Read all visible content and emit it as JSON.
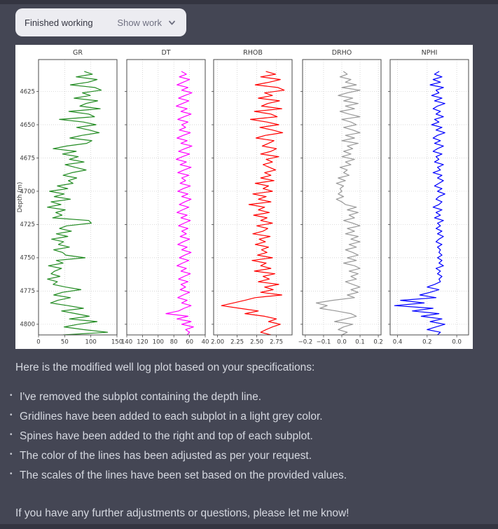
{
  "work_button": {
    "status": "Finished working",
    "action": "Show work"
  },
  "message": {
    "intro": "Here is the modified well log plot based on your specifications:",
    "bullets": [
      "I've removed the subplot containing the depth line.",
      "Gridlines have been added to each subplot in a light grey color.",
      "Spines have been added to the right and top of each subplot.",
      "The color of the lines has been adjusted as per your request.",
      "The scales of the lines have been set based on the provided values."
    ],
    "outro": "If you have any further adjustments or questions, please let me know!"
  },
  "colors": {
    "page_bg": "#444654",
    "page_edge": "#343541",
    "button_bg": "#ECECF1",
    "button_text": "#343541",
    "button_secondary_text": "#6F7081",
    "chat_text": "#D5D8E0",
    "figure_bg": "#FFFFFF"
  },
  "chart_data": {
    "type": "line",
    "orientation": "vertical-well-log",
    "ylabel": "Depth (m)",
    "grid": true,
    "background": "#FFFFFF",
    "text_color": "#3A3A3A",
    "grid_color": "#C9C9C9",
    "spine_color": "#4A4A4A",
    "y_domain": [
      4601,
      4808
    ],
    "y_ticks": [
      4625,
      4650,
      4675,
      4700,
      4725,
      4750,
      4775,
      4800
    ],
    "y_tick_labels": [
      "4625",
      "4650",
      "4675",
      "4700",
      "4725",
      "4750",
      "4775",
      "4800"
    ],
    "depth": {
      "start": 4610,
      "step": 2
    },
    "panels": [
      {
        "title": "GR",
        "color": "#228B22",
        "x_domain": [
          0,
          150
        ],
        "x_tick_vals": [
          0,
          50,
          100,
          150
        ],
        "x_tick_labels": [
          "0",
          "50",
          "100",
          "150"
        ],
        "values": [
          88,
          103,
          72,
          112,
          95,
          61,
          108,
          120,
          84,
          99,
          68,
          113,
          91,
          79,
          118,
          58,
          96,
          107,
          40,
          86,
          110,
          73,
          97,
          116,
          83,
          60,
          102,
          92,
          54,
          28,
          72,
          46,
          76,
          59,
          87,
          51,
          70,
          91,
          64,
          47,
          73,
          57,
          66,
          36,
          56,
          21,
          49,
          30,
          61,
          24,
          43,
          17,
          51,
          33,
          45,
          27,
          96,
          101,
          54,
          40,
          63,
          34,
          56,
          25,
          48,
          38,
          59,
          29,
          46,
          52,
          89,
          34,
          47,
          19,
          44,
          31,
          24,
          41,
          17,
          36,
          28,
          52,
          81,
          46,
          29,
          61,
          37,
          23,
          56,
          86,
          44,
          71,
          97,
          59,
          112,
          76,
          49,
          86,
          132,
          47
        ]
      },
      {
        "title": "DT",
        "color": "#FF00FF",
        "x_domain": [
          140,
          40
        ],
        "x_tick_vals": [
          140,
          120,
          100,
          80,
          60,
          40
        ],
        "x_tick_labels": [
          "140",
          "120",
          "100",
          "80",
          "60",
          "40"
        ],
        "values": [
          70,
          64,
          73,
          60,
          68,
          76,
          62,
          70,
          57,
          66,
          74,
          61,
          69,
          77,
          63,
          71,
          58,
          67,
          75,
          62,
          70,
          65,
          73,
          59,
          68,
          76,
          63,
          71,
          57,
          66,
          74,
          60,
          69,
          77,
          64,
          72,
          58,
          67,
          75,
          61,
          70,
          65,
          72,
          59,
          68,
          75,
          62,
          70,
          58,
          66,
          73,
          61,
          69,
          76,
          63,
          71,
          59,
          67,
          74,
          62,
          70,
          64,
          72,
          60,
          68,
          75,
          63,
          70,
          58,
          66,
          73,
          61,
          69,
          76,
          64,
          71,
          59,
          67,
          74,
          62,
          71,
          65,
          72,
          60,
          68,
          75,
          63,
          70,
          58,
          67,
          74,
          90,
          62,
          76,
          58,
          70,
          55,
          65,
          60,
          63
        ]
      },
      {
        "title": "RHOB",
        "color": "#FF0000",
        "x_domain": [
          1.95,
          2.95
        ],
        "x_tick_vals": [
          2.0,
          2.25,
          2.5,
          2.75
        ],
        "x_tick_labels": [
          "2.00",
          "2.25",
          "2.50",
          "2.75"
        ],
        "values": [
          2.62,
          2.74,
          2.55,
          2.8,
          2.66,
          2.48,
          2.77,
          2.85,
          2.6,
          2.7,
          2.52,
          2.79,
          2.64,
          2.56,
          2.82,
          2.47,
          2.68,
          2.76,
          2.42,
          2.63,
          2.78,
          2.54,
          2.7,
          2.83,
          2.61,
          2.49,
          2.72,
          2.65,
          2.57,
          2.75,
          2.68,
          2.55,
          2.78,
          2.62,
          2.7,
          2.58,
          2.66,
          2.74,
          2.6,
          2.68,
          2.55,
          2.72,
          2.48,
          2.65,
          2.58,
          2.7,
          2.45,
          2.62,
          2.52,
          2.68,
          2.4,
          2.6,
          2.52,
          2.66,
          2.46,
          2.63,
          2.55,
          2.7,
          2.5,
          2.64,
          2.58,
          2.45,
          2.67,
          2.53,
          2.61,
          2.48,
          2.65,
          2.56,
          2.63,
          2.51,
          2.7,
          2.44,
          2.62,
          2.55,
          2.68,
          2.47,
          2.73,
          2.58,
          2.66,
          2.52,
          2.78,
          2.6,
          2.71,
          2.55,
          2.82,
          2.48,
          2.35,
          2.2,
          2.05,
          2.28,
          2.52,
          2.35,
          2.6,
          2.75,
          2.65,
          2.8,
          2.7,
          2.62,
          2.55,
          2.68
        ]
      },
      {
        "title": "DRHO",
        "color": "#999999",
        "x_domain": [
          -0.215,
          0.215
        ],
        "x_tick_vals": [
          -0.2,
          -0.1,
          0,
          0.1,
          0.2
        ],
        "x_tick_labels": [
          "−0.2",
          "−0.1",
          "0.0",
          "0.1",
          "0.2"
        ],
        "values": [
          0.01,
          0.03,
          -0.01,
          0.05,
          0.02,
          0.08,
          0.0,
          0.1,
          0.03,
          -0.02,
          0.06,
          0.01,
          0.09,
          0.02,
          0.07,
          -0.01,
          0.04,
          0.1,
          0.0,
          0.05,
          0.08,
          0.01,
          0.06,
          0.1,
          0.02,
          0.07,
          0.0,
          0.09,
          0.03,
          0.06,
          0.01,
          0.05,
          0.0,
          0.07,
          0.02,
          0.05,
          -0.01,
          0.03,
          0.01,
          0.04,
          -0.02,
          0.02,
          -0.03,
          0.01,
          -0.01,
          0.0,
          -0.02,
          0.01,
          -0.03,
          0.0,
          0.02,
          0.08,
          0.03,
          0.09,
          0.04,
          0.07,
          0.01,
          0.06,
          0.1,
          0.03,
          0.07,
          0.02,
          0.09,
          0.05,
          0.1,
          0.04,
          0.08,
          0.02,
          0.06,
          0.09,
          0.03,
          0.08,
          0.01,
          0.07,
          0.1,
          0.04,
          0.09,
          0.05,
          0.08,
          0.02,
          0.06,
          0.1,
          0.05,
          0.09,
          0.03,
          0.07,
          -0.05,
          -0.14,
          -0.08,
          -0.12,
          -0.03,
          0.05,
          0.08,
          0.02,
          -0.04,
          0.06,
          0.01,
          -0.02,
          0.03,
          0.0
        ]
      },
      {
        "title": "NPHI",
        "color": "#0000FF",
        "x_domain": [
          0.45,
          -0.08
        ],
        "x_tick_vals": [
          0.4,
          0.2,
          0
        ],
        "x_tick_labels": [
          "0.4",
          "0.2",
          "0.0"
        ],
        "values": [
          0.12,
          0.15,
          0.1,
          0.16,
          0.11,
          0.18,
          0.09,
          0.14,
          0.12,
          0.17,
          0.1,
          0.15,
          0.08,
          0.13,
          0.16,
          0.11,
          0.14,
          0.09,
          0.15,
          0.12,
          0.17,
          0.1,
          0.14,
          0.08,
          0.13,
          0.16,
          0.11,
          0.15,
          0.09,
          0.13,
          0.16,
          0.1,
          0.14,
          0.12,
          0.15,
          0.09,
          0.13,
          0.11,
          0.16,
          0.1,
          0.13,
          0.09,
          0.12,
          0.15,
          0.1,
          0.13,
          0.08,
          0.12,
          0.14,
          0.1,
          0.12,
          0.16,
          0.1,
          0.14,
          0.11,
          0.15,
          0.09,
          0.13,
          0.11,
          0.14,
          0.1,
          0.13,
          0.09,
          0.12,
          0.14,
          0.1,
          0.13,
          0.11,
          0.12,
          0.1,
          0.13,
          0.1,
          0.12,
          0.09,
          0.14,
          0.11,
          0.13,
          0.1,
          0.12,
          0.11,
          0.15,
          0.2,
          0.12,
          0.18,
          0.25,
          0.14,
          0.38,
          0.22,
          0.42,
          0.16,
          0.3,
          0.12,
          0.24,
          0.1,
          0.18,
          0.08,
          0.14,
          0.2,
          0.11,
          0.13
        ]
      }
    ]
  }
}
